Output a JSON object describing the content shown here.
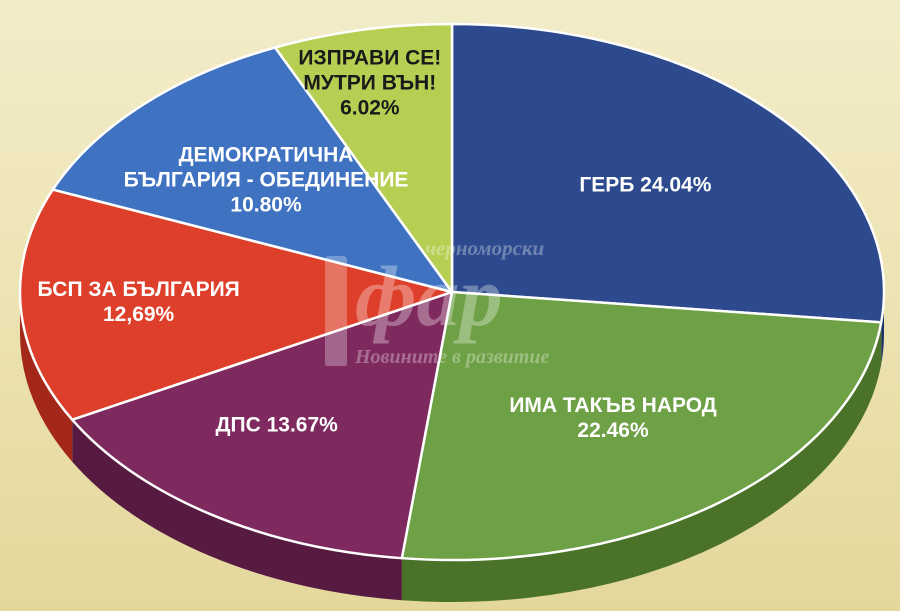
{
  "chart_data": {
    "type": "pie",
    "slices": [
      {
        "label": "ГЕРБ 24.04%",
        "lines": [
          "ГЕРБ 24.04%"
        ],
        "value": 24.04,
        "color": "#2c4a8d",
        "dark": "#1d3266",
        "text_color": "#ffffff"
      },
      {
        "label": "ИМА ТАКЪВ НАРОД 22.46%",
        "lines": [
          "ИМА ТАКЪВ НАРОД",
          "22.46%"
        ],
        "value": 22.46,
        "color": "#6ea045",
        "dark": "#4a7229",
        "text_color": "#ffffff"
      },
      {
        "label": "ДПС 13.67%",
        "lines": [
          "ДПС 13.67%"
        ],
        "value": 13.67,
        "color": "#7e2a5f",
        "dark": "#571a41",
        "text_color": "#ffffff"
      },
      {
        "label": "БСП ЗА БЪЛГАРИЯ 12,69%",
        "lines": [
          "БСП ЗА БЪЛГАРИЯ",
          "12,69%"
        ],
        "value": 12.69,
        "color": "#dd3f2a",
        "dark": "#a4281a",
        "text_color": "#ffffff"
      },
      {
        "label": "ДЕМОКРАТИЧНА БЪЛГАРИЯ - ОБЕДИНЕНИЕ 10.80%",
        "lines": [
          "ДЕМОКРАТИЧНА",
          "БЪЛГАРИЯ - ОБЕДИНЕНИЕ",
          "10.80%"
        ],
        "value": 10.8,
        "color": "#3f73c2",
        "dark": "#2b5192",
        "text_color": "#ffffff"
      },
      {
        "label": "ИЗПРАВИ СЕ! МУТРИ ВЪН! 6.02%",
        "lines": [
          "ИЗПРАВИ СЕ!",
          "МУТРИ ВЪН!",
          "6.02%"
        ],
        "value": 6.02,
        "color": "#b6cf52",
        "dark": "#8aa233",
        "text_color": "#1a1a1a"
      }
    ]
  },
  "watermark": {
    "top": "черноморски",
    "main": "фар",
    "bottom": "Новините в развитие"
  }
}
